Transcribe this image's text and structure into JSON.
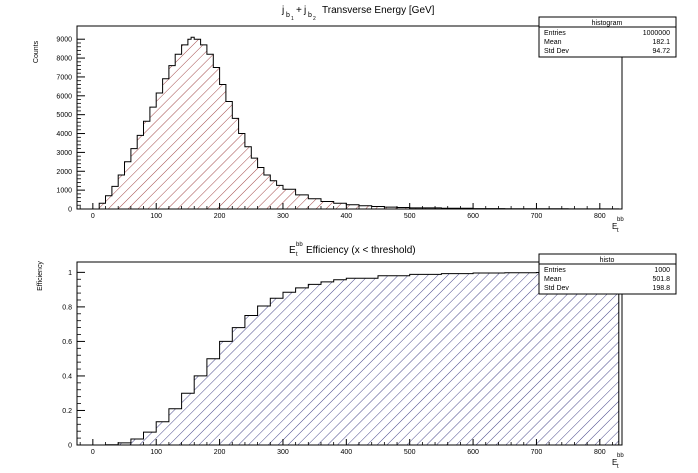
{
  "chart_data": [
    {
      "type": "area",
      "title_main": "Transverse Energy [GeV]",
      "title_j1": "j",
      "title_j1_sub": "b",
      "title_j1_subsub": "1",
      "title_plus": "+",
      "title_j2": "j",
      "title_j2_sub": "b",
      "title_j2_subsub": "2",
      "ylabel": "Counts",
      "xlabel_main": "E",
      "xlabel_sub": "t",
      "xlabel_sup": "bb",
      "xlim": [
        -25,
        835
      ],
      "ylim": [
        0,
        9700
      ],
      "xticks": [
        0,
        100,
        200,
        300,
        400,
        500,
        600,
        700,
        800
      ],
      "yticks": [
        0,
        1000,
        2000,
        3000,
        4000,
        5000,
        6000,
        7000,
        8000,
        9000
      ],
      "fill": "#8b1a1a",
      "x": [
        0,
        10,
        20,
        30,
        40,
        50,
        60,
        70,
        80,
        90,
        100,
        110,
        120,
        130,
        140,
        150,
        155,
        160,
        170,
        180,
        190,
        200,
        210,
        220,
        230,
        240,
        250,
        260,
        270,
        280,
        290,
        300,
        320,
        340,
        360,
        380,
        400,
        420,
        440,
        460,
        480,
        500,
        550,
        600,
        650,
        700,
        750,
        800,
        830
      ],
      "values": [
        0,
        300,
        700,
        1200,
        1800,
        2500,
        3200,
        3900,
        4650,
        5400,
        6150,
        6900,
        7600,
        8200,
        8700,
        9000,
        9100,
        9000,
        8700,
        8200,
        7500,
        6600,
        5700,
        4800,
        4000,
        3300,
        2700,
        2200,
        1800,
        1500,
        1250,
        1050,
        750,
        540,
        400,
        300,
        230,
        170,
        130,
        100,
        80,
        60,
        35,
        20,
        12,
        8,
        5,
        3,
        2
      ],
      "stats": {
        "name": "histogram",
        "rows": [
          {
            "label": "Entries",
            "value": "1000000"
          },
          {
            "label": "Mean",
            "value": "182.1"
          },
          {
            "label": "Std Dev",
            "value": "94.72"
          }
        ]
      }
    },
    {
      "type": "area",
      "title_e": "E",
      "title_e_sub": "t",
      "title_e_sup": "bb",
      "title_main": "Efficiency (x < threshold)",
      "ylabel": "Efficiency",
      "xlabel_main": "E",
      "xlabel_sub": "t",
      "xlabel_sup": "bb",
      "xlim": [
        -25,
        835
      ],
      "ylim": [
        0,
        1.06
      ],
      "xticks": [
        0,
        100,
        200,
        300,
        400,
        500,
        600,
        700,
        800
      ],
      "yticks": [
        0,
        0.2,
        0.4,
        0.6,
        0.8,
        1
      ],
      "ytick_labels": [
        "0",
        "0.2",
        "0.4",
        "0.6",
        "0.8",
        "1"
      ],
      "fill": "#1a1a6e",
      "x": [
        0,
        20,
        40,
        60,
        80,
        100,
        120,
        140,
        160,
        180,
        200,
        220,
        240,
        260,
        280,
        300,
        320,
        340,
        360,
        380,
        400,
        450,
        500,
        550,
        600,
        650,
        700,
        750,
        800,
        830
      ],
      "values": [
        0,
        0.002,
        0.012,
        0.035,
        0.075,
        0.135,
        0.21,
        0.3,
        0.4,
        0.5,
        0.6,
        0.68,
        0.75,
        0.805,
        0.85,
        0.885,
        0.91,
        0.93,
        0.945,
        0.957,
        0.966,
        0.98,
        0.988,
        0.993,
        0.996,
        0.998,
        0.999,
        1,
        1,
        1
      ],
      "stats": {
        "name": "histo",
        "rows": [
          {
            "label": "Entries",
            "value": "1000"
          },
          {
            "label": "Mean",
            "value": "501.8"
          },
          {
            "label": "Std Dev",
            "value": "198.8"
          }
        ]
      }
    }
  ]
}
